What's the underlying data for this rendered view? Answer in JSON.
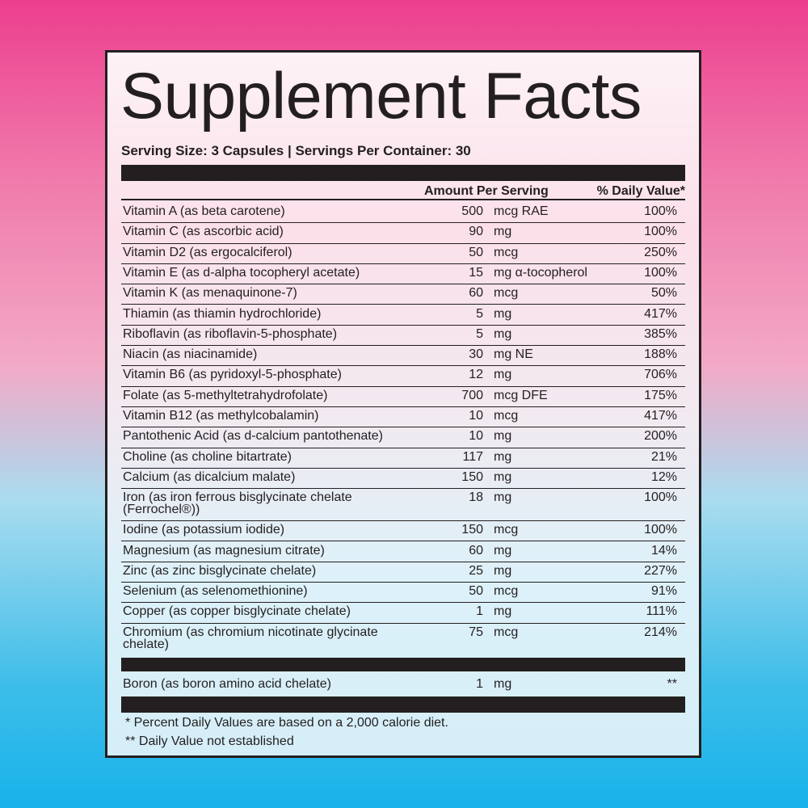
{
  "title": "Supplement Facts",
  "serving": "Serving Size: 3 Capsules | Servings Per Container: 30",
  "header": {
    "amount": "Amount Per Serving",
    "daily_value": "% Daily Value*"
  },
  "rows": [
    {
      "name": "Vitamin A (as beta carotene)",
      "amount": "500",
      "unit": "mcg RAE",
      "dv": "100%"
    },
    {
      "name": "Vitamin C (as ascorbic acid)",
      "amount": "90",
      "unit": "mg",
      "dv": "100%"
    },
    {
      "name": "Vitamin D2 (as ergocalciferol)",
      "amount": "50",
      "unit": "mcg",
      "dv": "250%"
    },
    {
      "name": "Vitamin E (as d-alpha tocopheryl acetate)",
      "amount": "15",
      "unit": "mg α-tocopherol",
      "dv": "100%"
    },
    {
      "name": "Vitamin K (as menaquinone-7)",
      "amount": "60",
      "unit": "mcg",
      "dv": "50%"
    },
    {
      "name": "Thiamin (as thiamin hydrochloride)",
      "amount": "5",
      "unit": "mg",
      "dv": "417%"
    },
    {
      "name": "Riboflavin (as riboflavin-5-phosphate)",
      "amount": "5",
      "unit": "mg",
      "dv": "385%"
    },
    {
      "name": "Niacin (as niacinamide)",
      "amount": "30",
      "unit": "mg NE",
      "dv": "188%"
    },
    {
      "name": "Vitamin B6 (as pyridoxyl-5-phosphate)",
      "amount": "12",
      "unit": "mg",
      "dv": "706%"
    },
    {
      "name": "Folate (as 5-methyltetrahydrofolate)",
      "amount": "700",
      "unit": "mcg DFE",
      "dv": "175%"
    },
    {
      "name": "Vitamin B12 (as methylcobalamin)",
      "amount": "10",
      "unit": "mcg",
      "dv": "417%"
    },
    {
      "name": "Pantothenic Acid (as d-calcium pantothenate)",
      "amount": "10",
      "unit": "mg",
      "dv": "200%"
    },
    {
      "name": "Choline (as choline bitartrate)",
      "amount": "117",
      "unit": "mg",
      "dv": "21%"
    },
    {
      "name": "Calcium (as dicalcium malate)",
      "amount": "150",
      "unit": "mg",
      "dv": "12%"
    },
    {
      "name": "Iron (as iron ferrous bisglycinate chelate (Ferrochel®))",
      "amount": "18",
      "unit": "mg",
      "dv": "100%"
    },
    {
      "name": "Iodine (as potassium iodide)",
      "amount": "150",
      "unit": "mcg",
      "dv": "100%"
    },
    {
      "name": "Magnesium (as magnesium citrate)",
      "amount": "60",
      "unit": "mg",
      "dv": "14%"
    },
    {
      "name": "Zinc (as zinc bisglycinate chelate)",
      "amount": "25",
      "unit": "mg",
      "dv": "227%"
    },
    {
      "name": "Selenium (as selenomethionine)",
      "amount": "50",
      "unit": "mcg",
      "dv": "91%"
    },
    {
      "name": "Copper (as copper bisglycinate chelate)",
      "amount": "1",
      "unit": "mg",
      "dv": "111%"
    },
    {
      "name": "Chromium (as chromium nicotinate glycinate chelate)",
      "amount": "75",
      "unit": "mcg",
      "dv": "214%"
    }
  ],
  "other_rows": [
    {
      "name": "Boron (as boron amino acid chelate)",
      "amount": "1",
      "unit": "mg",
      "dv": "**"
    }
  ],
  "footnotes": [
    "* Percent Daily Values are based on a 2,000 calorie diet.",
    "** Daily Value not established"
  ]
}
